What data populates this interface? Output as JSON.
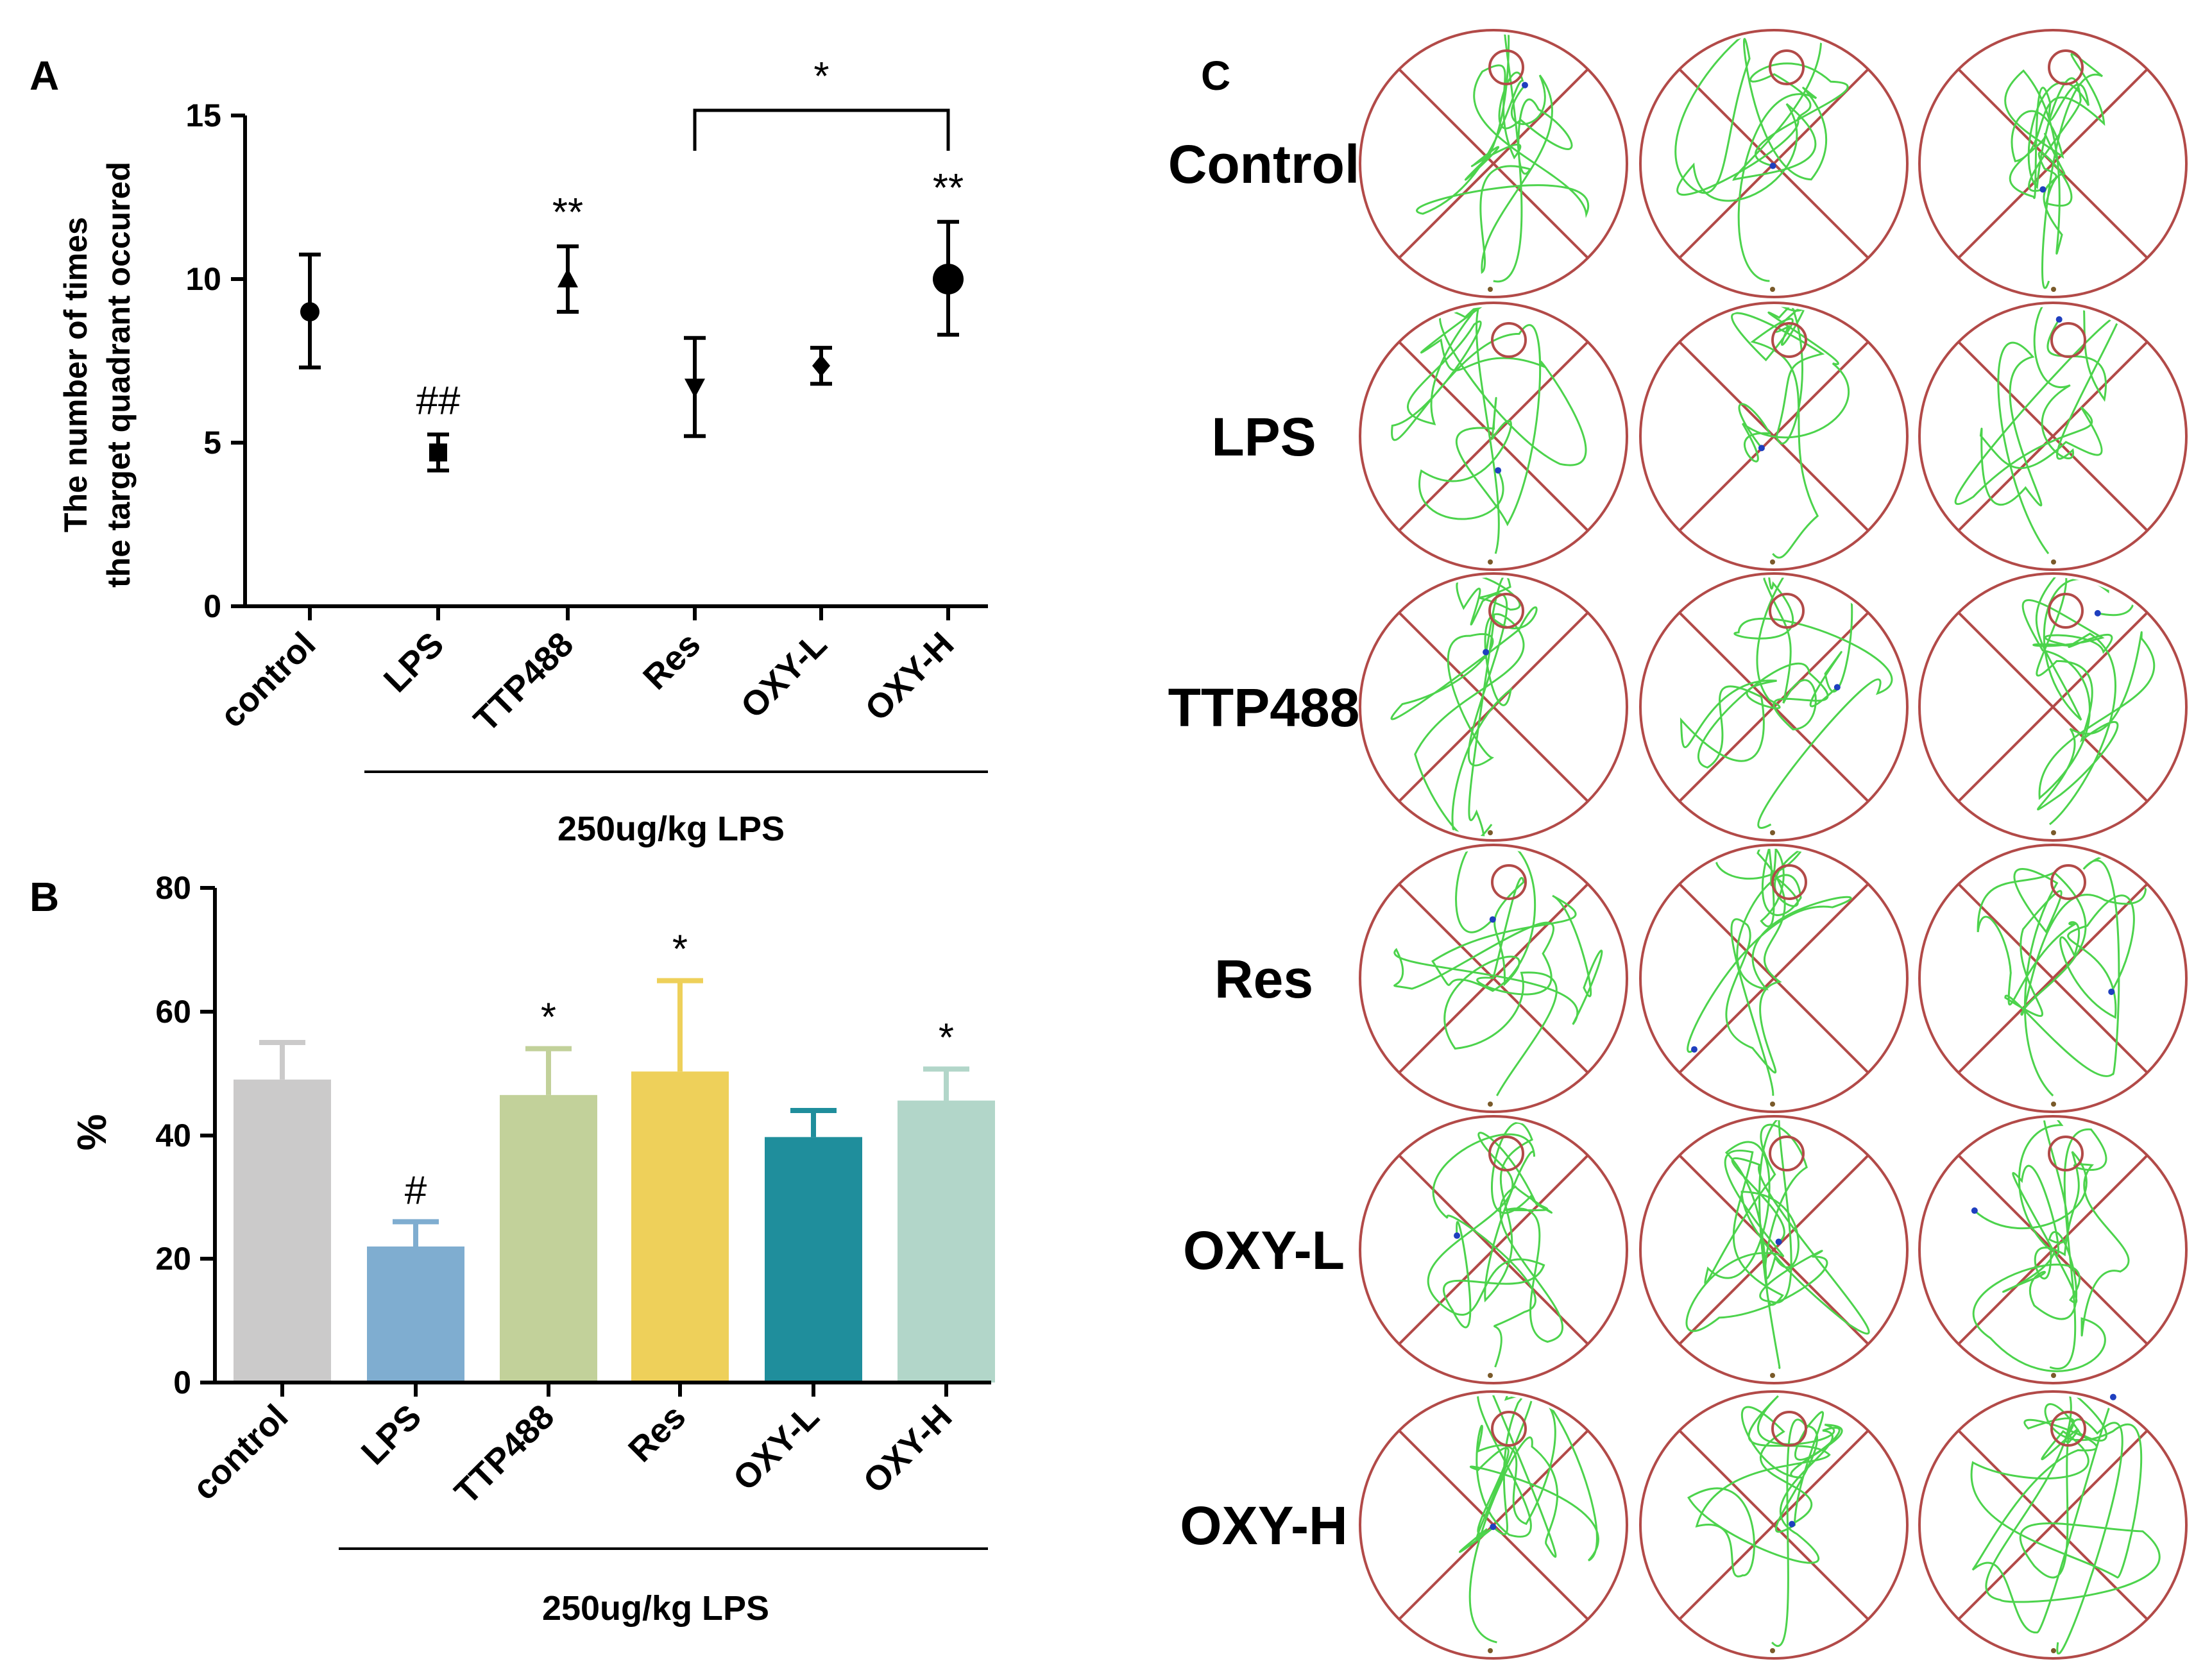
{
  "panel_labels": {
    "a": "A",
    "b": "B",
    "c": "C"
  },
  "treatment_bracket_label": "250ug/kg LPS",
  "chart_data": [
    {
      "panel": "A",
      "type": "scatter",
      "ylabel": [
        "The number of times",
        "the target quadrant occured"
      ],
      "ylim": [
        0,
        15
      ],
      "yticks": [
        "0",
        "5",
        "10",
        "15"
      ],
      "categories": [
        "control",
        "LPS",
        "TTP488",
        "Res",
        "OXY-L",
        "OXY-H"
      ],
      "markers": [
        "circle",
        "square",
        "triangle-up",
        "triangle-down",
        "diamond",
        "circle-large"
      ],
      "values": [
        9.0,
        4.7,
        10.0,
        6.7,
        7.35,
        10.0
      ],
      "err_low": [
        7.3,
        4.15,
        9.0,
        5.2,
        6.8,
        8.3
      ],
      "err_high": [
        10.75,
        5.25,
        11.0,
        8.2,
        7.9,
        11.75
      ],
      "annotations": [
        "",
        "##",
        "**",
        "",
        "",
        "**"
      ],
      "comparison": {
        "from": "Res",
        "to": "OXY-H",
        "label": "*"
      }
    },
    {
      "panel": "B",
      "type": "bar",
      "ylabel": "%",
      "ylim": [
        0,
        80
      ],
      "yticks": [
        "0",
        "20",
        "40",
        "60",
        "80"
      ],
      "categories": [
        "control",
        "LPS",
        "TTP488",
        "Res",
        "OXY-L",
        "OXY-H"
      ],
      "values": [
        49,
        22,
        46.5,
        50.3,
        39.7,
        45.6
      ],
      "err_high": [
        55,
        26,
        54,
        65,
        44,
        50.7
      ],
      "colors": [
        "#cbcaca",
        "#7fadd0",
        "#c2d19a",
        "#eed05a",
        "#1f8e9c",
        "#b2d6c9"
      ],
      "annotations": [
        "",
        "#",
        "*",
        "*",
        "",
        "*"
      ]
    }
  ],
  "panel_c": {
    "row_labels": [
      "Control",
      "LPS",
      "TTP488",
      "Res",
      "OXY-L",
      "OXY-H"
    ],
    "colors": {
      "pool": "#b24a48",
      "path": "#4cd34c",
      "dot": "#1f3fbf"
    }
  }
}
